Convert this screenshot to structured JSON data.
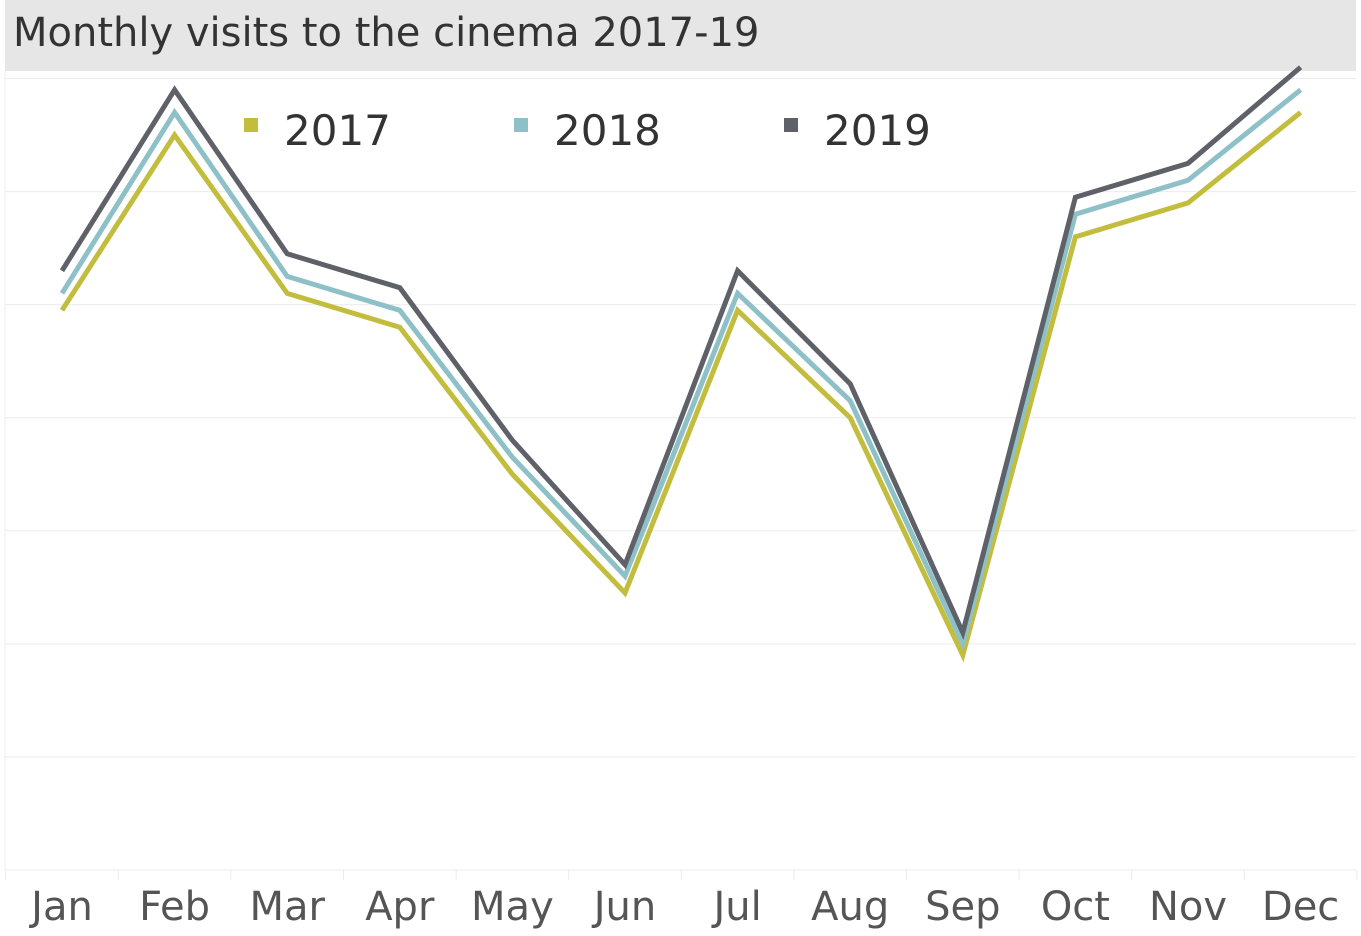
{
  "chart_data": {
    "type": "line",
    "title": "Monthly visits to the cinema 2017-19",
    "xlabel": "",
    "ylabel": "",
    "categories": [
      "Jan",
      "Feb",
      "Mar",
      "Apr",
      "May",
      "Jun",
      "Jul",
      "Aug",
      "Sep",
      "Oct",
      "Nov",
      "Dec"
    ],
    "ylim": [
      0,
      7.5
    ],
    "grid": true,
    "legend": "top",
    "series": [
      {
        "name": "2017",
        "color": "#c2bd3d",
        "values": [
          4.95,
          6.5,
          5.1,
          4.8,
          3.5,
          2.45,
          4.95,
          4.0,
          1.9,
          5.6,
          5.9,
          6.7
        ]
      },
      {
        "name": "2018",
        "color": "#8ec0c8",
        "values": [
          5.1,
          6.7,
          5.25,
          4.95,
          3.65,
          2.6,
          5.1,
          4.15,
          2.0,
          5.8,
          6.1,
          6.9
        ]
      },
      {
        "name": "2019",
        "color": "#5f6168",
        "values": [
          5.3,
          6.9,
          5.45,
          5.15,
          3.8,
          2.7,
          5.3,
          4.3,
          2.1,
          5.95,
          6.25,
          7.1
        ]
      }
    ]
  }
}
